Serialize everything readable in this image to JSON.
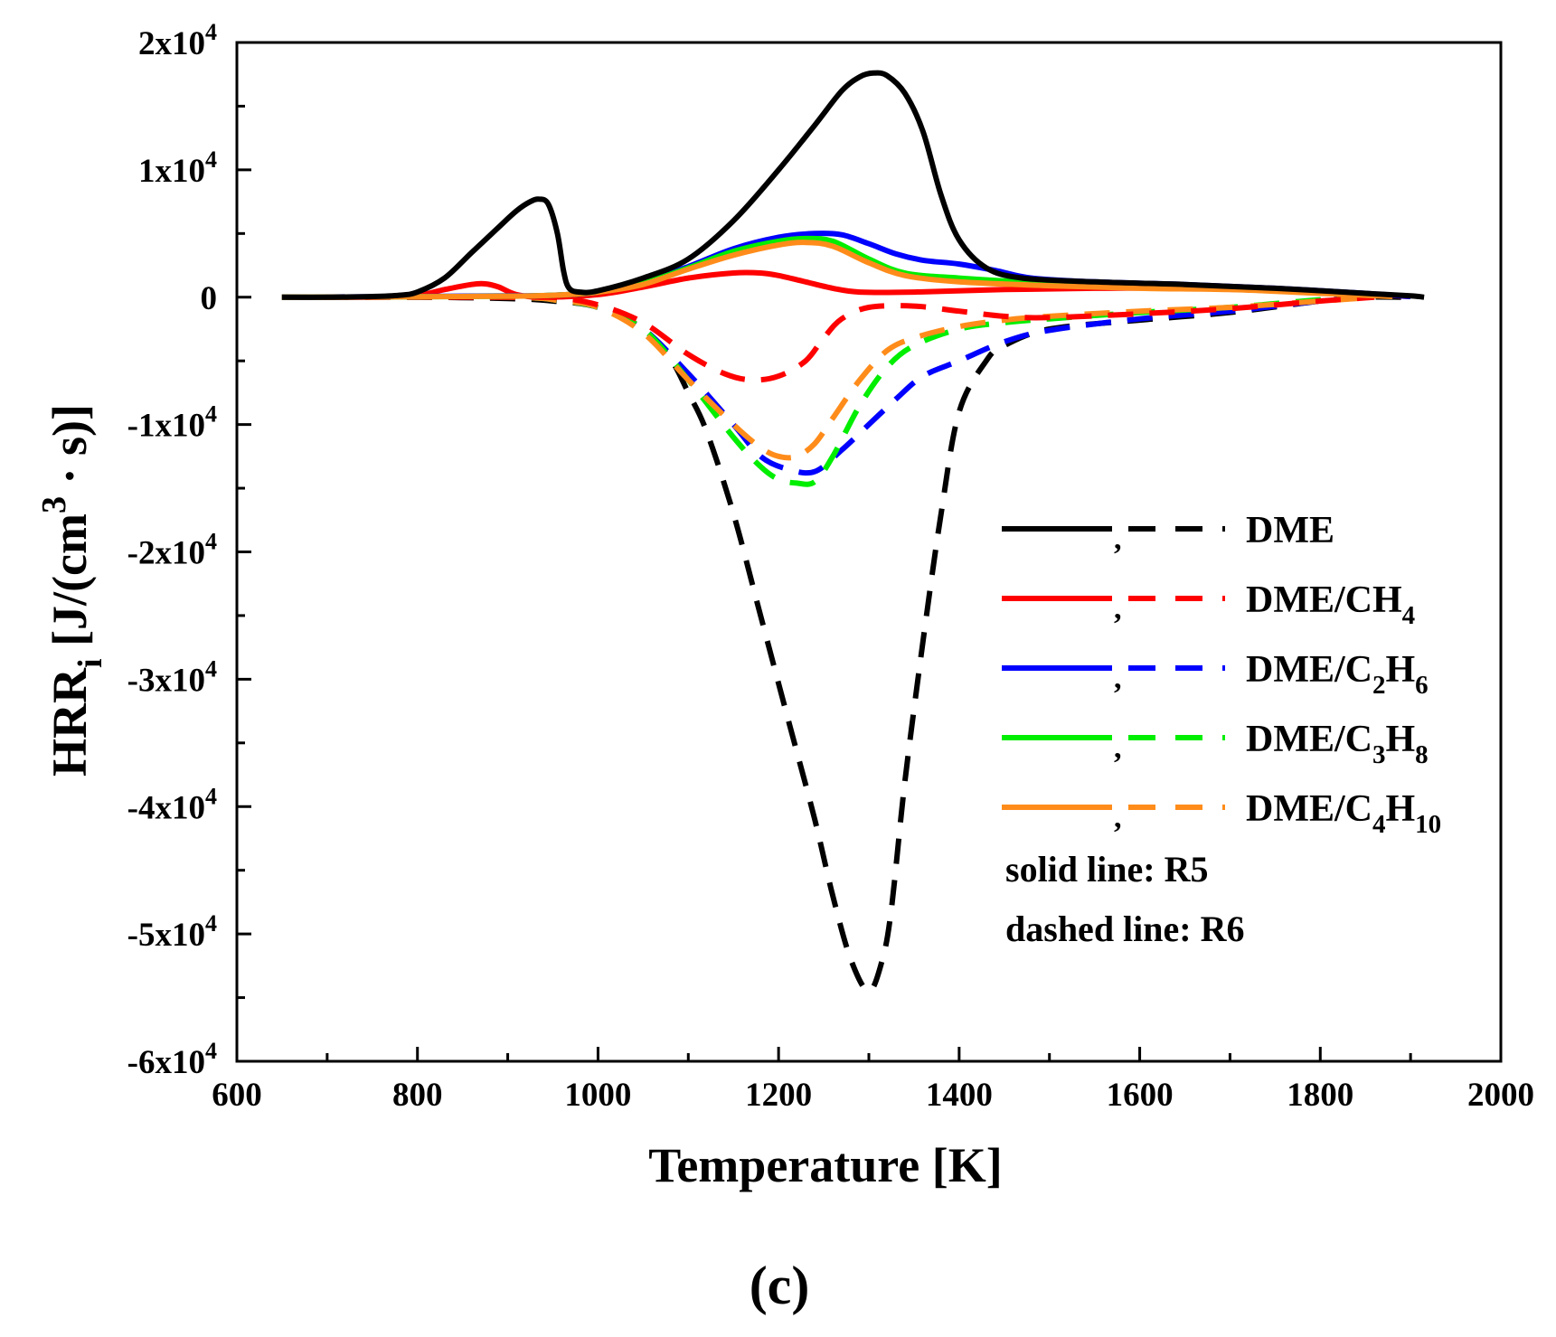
{
  "chart_data": {
    "type": "line",
    "panel_label": "(c)",
    "xlabel": "Temperature [K]",
    "ylabel": {
      "parts": [
        {
          "text": "HRR",
          "shift": "none"
        },
        {
          "text": "i",
          "shift": "sub"
        },
        {
          "text": " [J/(cm",
          "shift": "none"
        },
        {
          "text": "3",
          "shift": "super"
        },
        {
          "text": " · s)]",
          "shift": "none"
        }
      ]
    },
    "xlim": [
      600,
      2000
    ],
    "ylim": [
      -60000,
      20000
    ],
    "x_ticks": [
      {
        "value": 600,
        "label": "600"
      },
      {
        "value": 800,
        "label": "800"
      },
      {
        "value": 1000,
        "label": "1000"
      },
      {
        "value": 1200,
        "label": "1200"
      },
      {
        "value": 1400,
        "label": "1400"
      },
      {
        "value": 1600,
        "label": "1600"
      },
      {
        "value": 1800,
        "label": "1800"
      },
      {
        "value": 2000,
        "label": "2000"
      }
    ],
    "y_ticks": [
      {
        "value": 20000,
        "mant": "2x10",
        "exp": "4"
      },
      {
        "value": 10000,
        "mant": "1x10",
        "exp": "4"
      },
      {
        "value": 0,
        "mant": "0",
        "exp": ""
      },
      {
        "value": -10000,
        "mant": "-1x10",
        "exp": "4"
      },
      {
        "value": -20000,
        "mant": "-2x10",
        "exp": "4"
      },
      {
        "value": -30000,
        "mant": "-3x10",
        "exp": "4"
      },
      {
        "value": -40000,
        "mant": "-4x10",
        "exp": "4"
      },
      {
        "value": -50000,
        "mant": "-5x10",
        "exp": "4"
      },
      {
        "value": -60000,
        "mant": "-6x10",
        "exp": "4"
      }
    ],
    "series": [
      {
        "name": "DME",
        "color": "#000000",
        "label_parts": [
          {
            "text": "DME",
            "shift": "none"
          }
        ],
        "solid": [
          [
            650,
            0
          ],
          [
            700,
            0
          ],
          [
            750,
            50
          ],
          [
            780,
            150
          ],
          [
            800,
            400
          ],
          [
            830,
            1500
          ],
          [
            860,
            3500
          ],
          [
            890,
            5500
          ],
          [
            910,
            6800
          ],
          [
            925,
            7500
          ],
          [
            935,
            7700
          ],
          [
            945,
            7300
          ],
          [
            955,
            5000
          ],
          [
            962,
            2000
          ],
          [
            968,
            700
          ],
          [
            980,
            400
          ],
          [
            1000,
            500
          ],
          [
            1050,
            1500
          ],
          [
            1100,
            3000
          ],
          [
            1150,
            6000
          ],
          [
            1200,
            10000
          ],
          [
            1240,
            13500
          ],
          [
            1270,
            16200
          ],
          [
            1290,
            17300
          ],
          [
            1305,
            17600
          ],
          [
            1320,
            17400
          ],
          [
            1340,
            16000
          ],
          [
            1360,
            13000
          ],
          [
            1380,
            8000
          ],
          [
            1400,
            4500
          ],
          [
            1430,
            2300
          ],
          [
            1470,
            1500
          ],
          [
            1550,
            1200
          ],
          [
            1650,
            1000
          ],
          [
            1750,
            700
          ],
          [
            1850,
            300
          ],
          [
            1900,
            100
          ],
          [
            1915,
            0
          ]
        ],
        "dashed": [
          [
            650,
            0
          ],
          [
            800,
            0
          ],
          [
            900,
            -100
          ],
          [
            950,
            -300
          ],
          [
            1000,
            -800
          ],
          [
            1050,
            -2500
          ],
          [
            1080,
            -4800
          ],
          [
            1100,
            -7500
          ],
          [
            1120,
            -10500
          ],
          [
            1150,
            -17000
          ],
          [
            1180,
            -25000
          ],
          [
            1210,
            -33000
          ],
          [
            1240,
            -41000
          ],
          [
            1260,
            -47000
          ],
          [
            1280,
            -52000
          ],
          [
            1300,
            -54500
          ],
          [
            1315,
            -52000
          ],
          [
            1325,
            -48000
          ],
          [
            1340,
            -38000
          ],
          [
            1360,
            -27000
          ],
          [
            1380,
            -17000
          ],
          [
            1400,
            -9000
          ],
          [
            1430,
            -5000
          ],
          [
            1450,
            -3800
          ],
          [
            1500,
            -2500
          ],
          [
            1600,
            -1800
          ],
          [
            1700,
            -1200
          ],
          [
            1800,
            -300
          ],
          [
            1850,
            0
          ],
          [
            1890,
            0
          ]
        ]
      },
      {
        "name": "DME/CH4",
        "color": "#ff0000",
        "label_parts": [
          {
            "text": "DME/CH",
            "shift": "none"
          },
          {
            "text": "4",
            "shift": "sub"
          }
        ],
        "solid": [
          [
            650,
            0
          ],
          [
            750,
            0
          ],
          [
            800,
            150
          ],
          [
            830,
            600
          ],
          [
            860,
            1000
          ],
          [
            875,
            1050
          ],
          [
            890,
            800
          ],
          [
            910,
            200
          ],
          [
            940,
            0
          ],
          [
            1000,
            200
          ],
          [
            1050,
            800
          ],
          [
            1100,
            1500
          ],
          [
            1150,
            1900
          ],
          [
            1180,
            1900
          ],
          [
            1200,
            1700
          ],
          [
            1230,
            1200
          ],
          [
            1260,
            700
          ],
          [
            1290,
            400
          ],
          [
            1350,
            400
          ],
          [
            1450,
            600
          ],
          [
            1550,
            700
          ],
          [
            1650,
            700
          ],
          [
            1750,
            500
          ],
          [
            1850,
            250
          ],
          [
            1900,
            50
          ]
        ],
        "dashed": [
          [
            650,
            0
          ],
          [
            900,
            0
          ],
          [
            950,
            0
          ],
          [
            1000,
            -600
          ],
          [
            1050,
            -2000
          ],
          [
            1100,
            -4500
          ],
          [
            1140,
            -6000
          ],
          [
            1170,
            -6500
          ],
          [
            1200,
            -6200
          ],
          [
            1230,
            -5000
          ],
          [
            1250,
            -3200
          ],
          [
            1270,
            -1700
          ],
          [
            1300,
            -800
          ],
          [
            1350,
            -700
          ],
          [
            1400,
            -1100
          ],
          [
            1450,
            -1500
          ],
          [
            1500,
            -1600
          ],
          [
            1600,
            -1300
          ],
          [
            1700,
            -900
          ],
          [
            1800,
            -300
          ],
          [
            1860,
            0
          ]
        ]
      },
      {
        "name": "DME/C2H6",
        "color": "#0000ff",
        "label_parts": [
          {
            "text": "DME/C",
            "shift": "none"
          },
          {
            "text": "2",
            "shift": "sub"
          },
          {
            "text": "H",
            "shift": "none"
          },
          {
            "text": "6",
            "shift": "sub"
          }
        ],
        "solid": [
          [
            650,
            0
          ],
          [
            800,
            50
          ],
          [
            900,
            100
          ],
          [
            950,
            150
          ],
          [
            1000,
            400
          ],
          [
            1050,
            1200
          ],
          [
            1100,
            2400
          ],
          [
            1150,
            3800
          ],
          [
            1200,
            4700
          ],
          [
            1240,
            5000
          ],
          [
            1270,
            4900
          ],
          [
            1300,
            4200
          ],
          [
            1330,
            3400
          ],
          [
            1360,
            2900
          ],
          [
            1400,
            2600
          ],
          [
            1440,
            2100
          ],
          [
            1480,
            1500
          ],
          [
            1550,
            1200
          ],
          [
            1650,
            1000
          ],
          [
            1750,
            700
          ],
          [
            1850,
            300
          ],
          [
            1900,
            50
          ]
        ],
        "dashed": [
          [
            650,
            0
          ],
          [
            900,
            0
          ],
          [
            960,
            -300
          ],
          [
            1000,
            -800
          ],
          [
            1050,
            -2500
          ],
          [
            1100,
            -6000
          ],
          [
            1150,
            -10000
          ],
          [
            1180,
            -12500
          ],
          [
            1210,
            -13500
          ],
          [
            1240,
            -13700
          ],
          [
            1270,
            -12000
          ],
          [
            1300,
            -10000
          ],
          [
            1330,
            -8000
          ],
          [
            1360,
            -6200
          ],
          [
            1400,
            -5000
          ],
          [
            1450,
            -3500
          ],
          [
            1500,
            -2600
          ],
          [
            1600,
            -1700
          ],
          [
            1700,
            -1100
          ],
          [
            1800,
            -300
          ],
          [
            1860,
            0
          ]
        ]
      },
      {
        "name": "DME/C3H8",
        "color": "#00ee00",
        "label_parts": [
          {
            "text": "DME/C",
            "shift": "none"
          },
          {
            "text": "3",
            "shift": "sub"
          },
          {
            "text": "H",
            "shift": "none"
          },
          {
            "text": "8",
            "shift": "sub"
          }
        ],
        "solid": [
          [
            650,
            0
          ],
          [
            800,
            30
          ],
          [
            900,
            80
          ],
          [
            950,
            150
          ],
          [
            1000,
            400
          ],
          [
            1050,
            1100
          ],
          [
            1100,
            2300
          ],
          [
            1150,
            3600
          ],
          [
            1200,
            4400
          ],
          [
            1230,
            4600
          ],
          [
            1260,
            4400
          ],
          [
            1300,
            3000
          ],
          [
            1340,
            1900
          ],
          [
            1400,
            1500
          ],
          [
            1500,
            1100
          ],
          [
            1600,
            900
          ],
          [
            1700,
            700
          ],
          [
            1800,
            400
          ],
          [
            1880,
            100
          ]
        ],
        "dashed": [
          [
            650,
            0
          ],
          [
            900,
            0
          ],
          [
            960,
            -300
          ],
          [
            1000,
            -800
          ],
          [
            1050,
            -2500
          ],
          [
            1100,
            -6500
          ],
          [
            1150,
            -11000
          ],
          [
            1180,
            -13300
          ],
          [
            1200,
            -14300
          ],
          [
            1220,
            -14600
          ],
          [
            1240,
            -14500
          ],
          [
            1260,
            -12500
          ],
          [
            1290,
            -8500
          ],
          [
            1320,
            -5500
          ],
          [
            1350,
            -3800
          ],
          [
            1400,
            -2500
          ],
          [
            1450,
            -2000
          ],
          [
            1500,
            -1700
          ],
          [
            1600,
            -1200
          ],
          [
            1700,
            -800
          ],
          [
            1800,
            -200
          ],
          [
            1860,
            0
          ]
        ]
      },
      {
        "name": "DME/C4H10",
        "color": "#ff8c1a",
        "label_parts": [
          {
            "text": "DME/C",
            "shift": "none"
          },
          {
            "text": "4",
            "shift": "sub"
          },
          {
            "text": "H",
            "shift": "none"
          },
          {
            "text": "10",
            "shift": "sub"
          }
        ],
        "solid": [
          [
            650,
            0
          ],
          [
            800,
            30
          ],
          [
            900,
            80
          ],
          [
            950,
            150
          ],
          [
            1000,
            400
          ],
          [
            1050,
            1000
          ],
          [
            1100,
            2200
          ],
          [
            1150,
            3300
          ],
          [
            1200,
            4100
          ],
          [
            1230,
            4300
          ],
          [
            1260,
            4000
          ],
          [
            1300,
            2700
          ],
          [
            1340,
            1700
          ],
          [
            1400,
            1200
          ],
          [
            1500,
            900
          ],
          [
            1600,
            700
          ],
          [
            1700,
            600
          ],
          [
            1800,
            300
          ],
          [
            1880,
            50
          ]
        ],
        "dashed": [
          [
            650,
            0
          ],
          [
            900,
            0
          ],
          [
            960,
            -300
          ],
          [
            1000,
            -800
          ],
          [
            1050,
            -2800
          ],
          [
            1100,
            -6500
          ],
          [
            1150,
            -10000
          ],
          [
            1180,
            -11800
          ],
          [
            1200,
            -12500
          ],
          [
            1220,
            -12500
          ],
          [
            1240,
            -11500
          ],
          [
            1260,
            -9500
          ],
          [
            1290,
            -6500
          ],
          [
            1320,
            -4200
          ],
          [
            1350,
            -3200
          ],
          [
            1400,
            -2300
          ],
          [
            1450,
            -1800
          ],
          [
            1500,
            -1500
          ],
          [
            1600,
            -1100
          ],
          [
            1700,
            -800
          ],
          [
            1800,
            -300
          ],
          [
            1860,
            0
          ]
        ]
      }
    ],
    "legend_separator": ",",
    "annotations": [
      "solid line: R5",
      "dashed line: R6"
    ],
    "legend_position": "right",
    "grid": false
  }
}
